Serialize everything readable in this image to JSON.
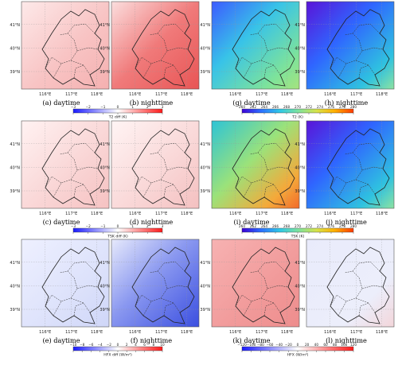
{
  "figure": {
    "rows": [
      {
        "panels": [
          {
            "caption": "(a) daytime",
            "map": "diff_warm_day",
            "lat_labels": [
              "41°N",
              "40°N",
              "39°N"
            ],
            "lon_labels": [
              "116°E",
              "117°E",
              "118°E"
            ]
          },
          {
            "caption": "(b) nighttime",
            "map": "diff_warm_night",
            "lat_labels": [
              "41°N",
              "40°N",
              "39°N"
            ],
            "lon_labels": [
              "116°E",
              "117°E",
              "118°E"
            ]
          },
          {
            "caption": "(g) daytime",
            "map": "abs_cold_day",
            "lat_labels": [
              "41°N",
              "40°N",
              "39°N"
            ],
            "lon_labels": [
              "116°E",
              "117°E",
              "118°E"
            ]
          },
          {
            "caption": "(h) nighttime",
            "map": "abs_cold_night",
            "lat_labels": [
              "41°N",
              "40°N",
              "39°N"
            ],
            "lon_labels": [
              "116°E",
              "117°E",
              "118°E"
            ]
          }
        ],
        "colorbars": [
          {
            "label": "T2 diff (K)",
            "ticks": [
              "−3",
              "−2",
              "−1",
              "0",
              "1",
              "2",
              "3"
            ],
            "cmap": "bwr"
          },
          {
            "label": "T2 (K)",
            "ticks": [
              "260",
              "262",
              "264",
              "266",
              "268",
              "270",
              "272",
              "274",
              "276",
              "278",
              "280"
            ],
            "cmap": "rainbow"
          }
        ]
      },
      {
        "panels": [
          {
            "caption": "(c) daytime",
            "map": "diff_pale_day",
            "lat_labels": [
              "41°N",
              "40°N",
              "39°N"
            ],
            "lon_labels": [
              "116°E",
              "117°E",
              "118°E"
            ]
          },
          {
            "caption": "(d) nighttime",
            "map": "diff_pale_night",
            "lat_labels": [
              "41°N",
              "40°N",
              "39°N"
            ],
            "lon_labels": [
              "116°E",
              "117°E",
              "118°E"
            ]
          },
          {
            "caption": "(i) daytime",
            "map": "abs_warm_day",
            "lat_labels": [
              "41°N",
              "40°N",
              "39°N"
            ],
            "lon_labels": [
              "116°E",
              "117°E",
              "118°E"
            ]
          },
          {
            "caption": "(j) nighttime",
            "map": "abs_cold_night",
            "lat_labels": [
              "41°N",
              "40°N",
              "39°N"
            ],
            "lon_labels": [
              "116°E",
              "117°E",
              "118°E"
            ]
          }
        ],
        "colorbars": [
          {
            "label": "TSK diff (K)",
            "ticks": [
              "−3",
              "−2",
              "−1",
              "0",
              "1",
              "2",
              "3"
            ],
            "cmap": "bwr"
          },
          {
            "label": "TSK (K)",
            "ticks": [
              "260",
              "262",
              "264",
              "266",
              "268",
              "270",
              "272",
              "274",
              "276",
              "278",
              "280"
            ],
            "cmap": "rainbow"
          }
        ]
      },
      {
        "panels": [
          {
            "caption": "(e) daytime",
            "map": "diff_bluish_day",
            "lat_labels": [
              "41°N",
              "40°N",
              "39°N"
            ],
            "lon_labels": [
              "116°E",
              "117°E",
              "118°E"
            ]
          },
          {
            "caption": "(f) nighttime",
            "map": "diff_blue_night",
            "lat_labels": [
              "41°N",
              "40°N",
              "39°N"
            ],
            "lon_labels": [
              "116°E",
              "117°E",
              "118°E"
            ]
          },
          {
            "caption": "(k) daytime",
            "map": "hfx_red_day",
            "lat_labels": [
              "41°N",
              "40°N",
              "39°N"
            ],
            "lon_labels": [
              "116°E",
              "117°E",
              "118°E"
            ]
          },
          {
            "caption": "(l) nighttime",
            "map": "hfx_pale_night",
            "lat_labels": [
              "41°N",
              "40°N",
              "39°N"
            ],
            "lon_labels": [
              "116°E",
              "117°E",
              "118°E"
            ]
          }
        ],
        "colorbars": [
          {
            "label": "HFX diff (W/m²)",
            "ticks": [
              "−10",
              "−8",
              "−6",
              "−4",
              "−2",
              "0",
              "2",
              "4",
              "6",
              "8",
              "10"
            ],
            "cmap": "bwr"
          },
          {
            "label": "HFX (W/m²)",
            "ticks": [
              "−120",
              "−100",
              "−80",
              "−60",
              "−40",
              "−20",
              "0",
              "20",
              "40",
              "60",
              "80",
              "100",
              "120"
            ],
            "cmap": "bwr"
          }
        ]
      }
    ],
    "colors": {
      "bwr_low": "#1a1aff",
      "bwr_mid": "#ffffff",
      "bwr_high": "#ff1a1a",
      "rainbow": [
        "#3b00d6",
        "#2c6fff",
        "#2fc8e6",
        "#7be2a0",
        "#d6e34a",
        "#ffb000",
        "#ff3a00"
      ]
    }
  }
}
